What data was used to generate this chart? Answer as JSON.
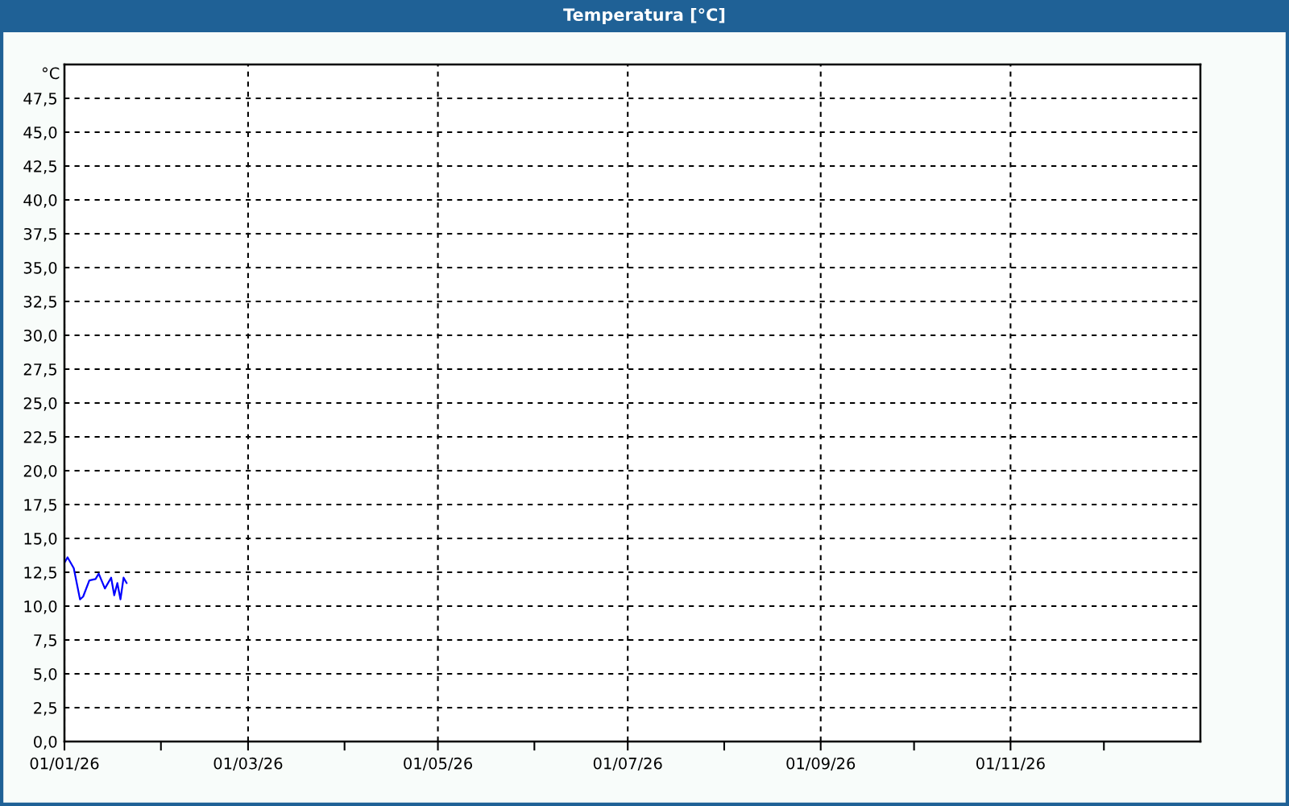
{
  "chart_data": {
    "type": "line",
    "title": "Temperatura [°C]",
    "ylabel": "°C",
    "x": [
      "2026-01-01",
      "2026-01-02",
      "2026-01-04",
      "2026-01-06",
      "2026-01-07",
      "2026-01-09",
      "2026-01-11",
      "2026-01-12",
      "2026-01-14",
      "2026-01-16",
      "2026-01-17",
      "2026-01-18",
      "2026-01-19",
      "2026-01-20",
      "2026-01-21"
    ],
    "series": [
      {
        "color": "#0000ff",
        "values": [
          13.2,
          13.6,
          12.8,
          10.5,
          10.7,
          11.9,
          12.0,
          12.4,
          11.3,
          12.1,
          10.8,
          11.7,
          10.5,
          12.1,
          11.7
        ]
      }
    ],
    "xlim": [
      "2026-01-01",
      "2027-01-01"
    ],
    "xticks": [
      {
        "value": "2026-01-01",
        "label": "01/01/26"
      },
      {
        "value": "2026-02-01",
        "label": null
      },
      {
        "value": "2026-03-01",
        "label": "01/03/26"
      },
      {
        "value": "2026-04-01",
        "label": null
      },
      {
        "value": "2026-05-01",
        "label": "01/05/26"
      },
      {
        "value": "2026-06-01",
        "label": null
      },
      {
        "value": "2026-07-01",
        "label": "01/07/26"
      },
      {
        "value": "2026-08-01",
        "label": null
      },
      {
        "value": "2026-09-01",
        "label": "01/09/26"
      },
      {
        "value": "2026-10-01",
        "label": null
      },
      {
        "value": "2026-11-01",
        "label": "01/11/26"
      },
      {
        "value": "2026-12-01",
        "label": null
      }
    ],
    "ylim": [
      0,
      50
    ],
    "yticks": [
      {
        "value": 0,
        "label": "0,0"
      },
      {
        "value": 2.5,
        "label": "2,5"
      },
      {
        "value": 5,
        "label": "5,0"
      },
      {
        "value": 7.5,
        "label": "7,5"
      },
      {
        "value": 10,
        "label": "10,0"
      },
      {
        "value": 12.5,
        "label": "12,5"
      },
      {
        "value": 15,
        "label": "15,0"
      },
      {
        "value": 17.5,
        "label": "17,5"
      },
      {
        "value": 20,
        "label": "20,0"
      },
      {
        "value": 22.5,
        "label": "22,5"
      },
      {
        "value": 25,
        "label": "25,0"
      },
      {
        "value": 27.5,
        "label": "27,5"
      },
      {
        "value": 30,
        "label": "30,0"
      },
      {
        "value": 32.5,
        "label": "32,5"
      },
      {
        "value": 35,
        "label": "35,0"
      },
      {
        "value": 37.5,
        "label": "37,5"
      },
      {
        "value": 40,
        "label": "40,0"
      },
      {
        "value": 42.5,
        "label": "42,5"
      },
      {
        "value": 45,
        "label": "45,0"
      },
      {
        "value": 47.5,
        "label": "47,5"
      }
    ],
    "grid": true
  }
}
